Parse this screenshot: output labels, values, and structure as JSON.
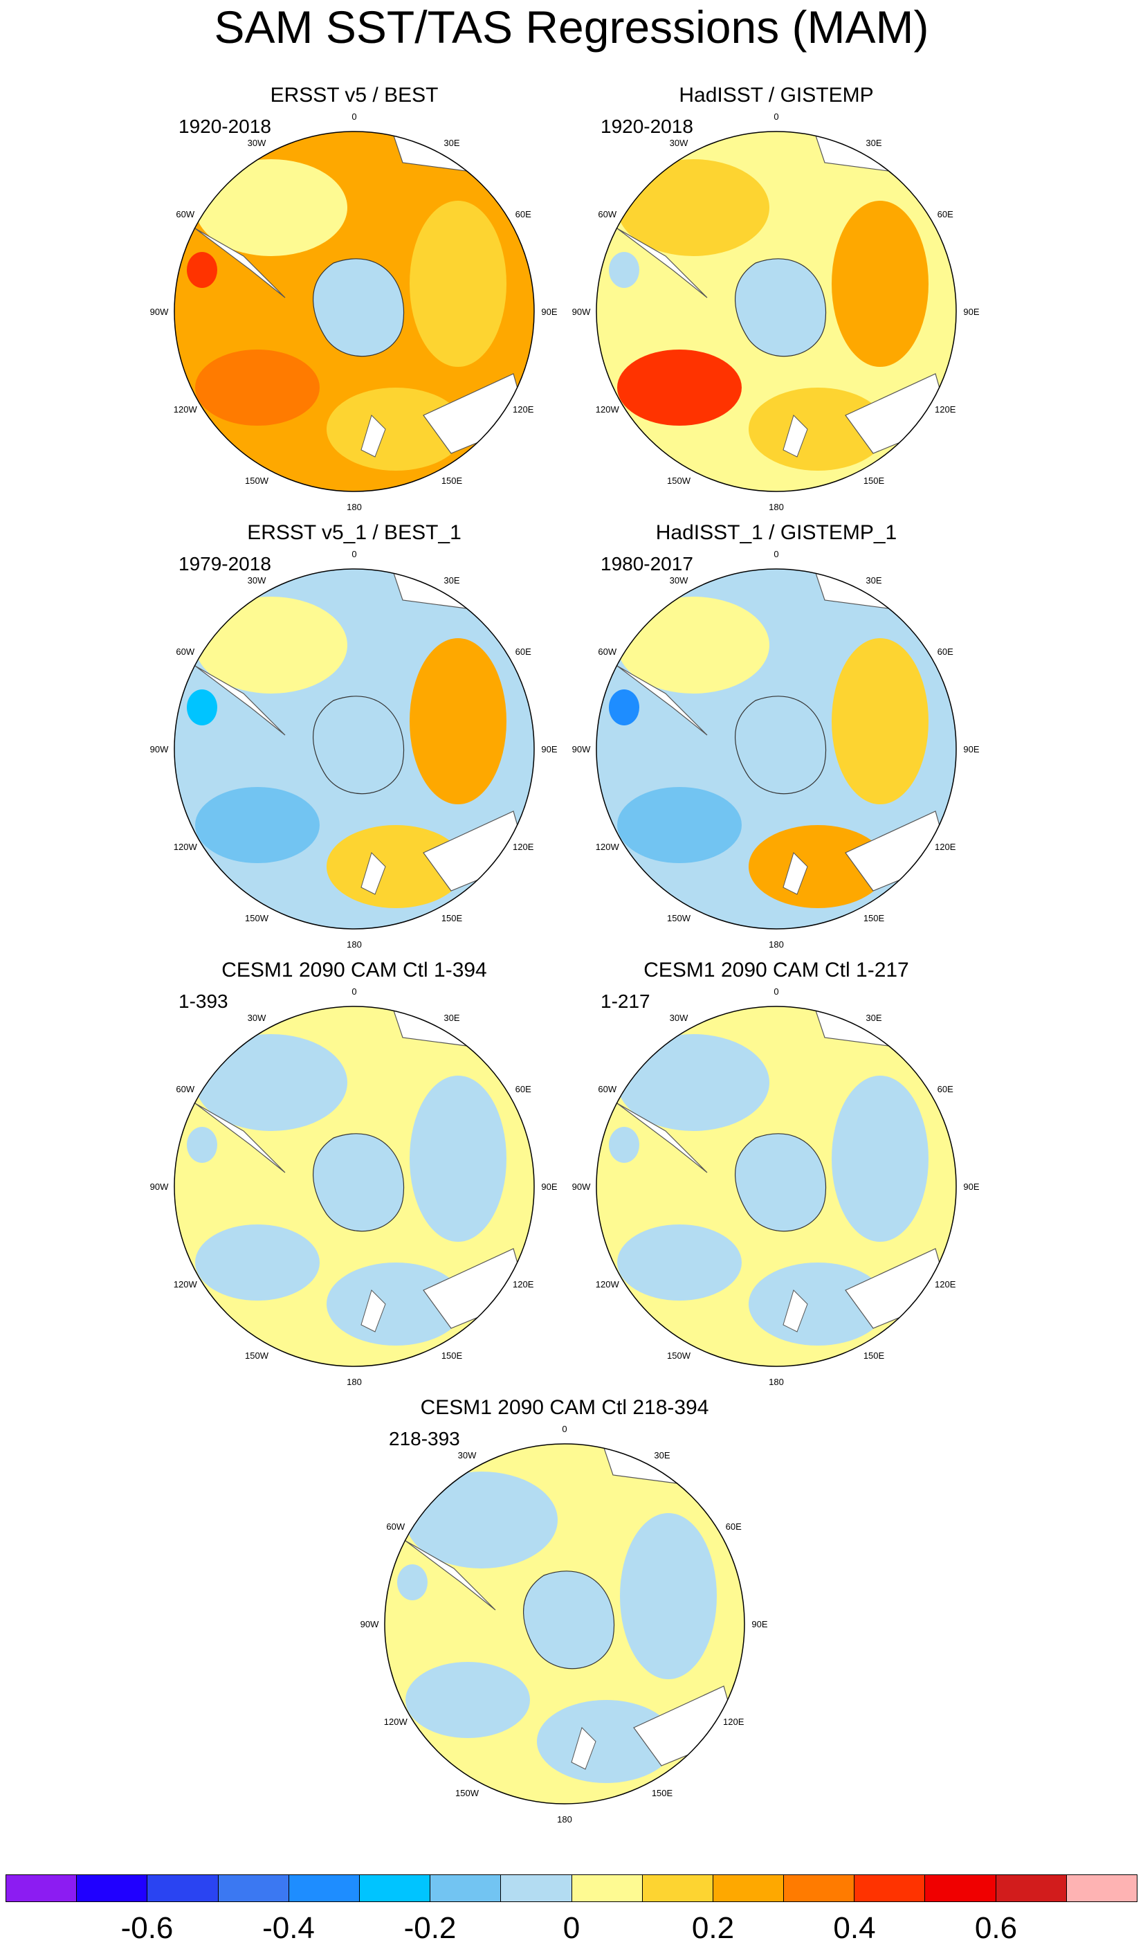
{
  "figure": {
    "title": "SAM SST/TAS Regressions (MAM)"
  },
  "compass_labels": [
    "0",
    "30E",
    "60E",
    "90E",
    "120E",
    "150E",
    "180",
    "150W",
    "120W",
    "90W",
    "60W",
    "30W"
  ],
  "panels": [
    {
      "title": "ERSST v5 / BEST",
      "period": "1920-2018",
      "ocean": "#fea800",
      "regions": [
        "#fefa92",
        "#fdd431",
        "#ff7b00",
        "#ff3300",
        "#fdd431"
      ]
    },
    {
      "title": "HadISST / GISTEMP",
      "period": "1920-2018",
      "ocean": "#fefa92",
      "regions": [
        "#fdd431",
        "#fea800",
        "#ff3300",
        "#b3dcf2",
        "#fdd431"
      ]
    },
    {
      "title": "ERSST v5_1 / BEST_1",
      "period": "1979-2018",
      "ocean": "#b3dcf2",
      "regions": [
        "#fefa92",
        "#fea800",
        "#72c4f2",
        "#00c4ff",
        "#fdd431"
      ]
    },
    {
      "title": "HadISST_1 / GISTEMP_1",
      "period": "1980-2017",
      "ocean": "#b3dcf2",
      "regions": [
        "#fefa92",
        "#fdd431",
        "#72c4f2",
        "#1e8dff",
        "#fea800"
      ]
    },
    {
      "title": "CESM1 2090 CAM Ctl 1-394",
      "period": "1-393",
      "ocean": "#fefa92",
      "regions": [
        "#b3dcf2",
        "#b3dcf2",
        "#b3dcf2",
        "#b3dcf2",
        "#b3dcf2"
      ]
    },
    {
      "title": "CESM1 2090 CAM Ctl 1-217",
      "period": "1-217",
      "ocean": "#fefa92",
      "regions": [
        "#b3dcf2",
        "#b3dcf2",
        "#b3dcf2",
        "#b3dcf2",
        "#b3dcf2"
      ]
    },
    {
      "title": "CESM1 2090 CAM Ctl 218-394",
      "period": "218-393",
      "ocean": "#fefa92",
      "regions": [
        "#b3dcf2",
        "#b3dcf2",
        "#b3dcf2",
        "#b3dcf2",
        "#b3dcf2"
      ]
    }
  ],
  "colorbar": {
    "colors": [
      "#8c1cf2",
      "#2000ff",
      "#2a44f2",
      "#3b78f2",
      "#1e8dff",
      "#00c4ff",
      "#72c4f2",
      "#b3dcf2",
      "#fefa92",
      "#fdd431",
      "#fea800",
      "#ff7b00",
      "#ff3300",
      "#f00000",
      "#d21c1c",
      "#feb3b3"
    ],
    "boundaries": [
      -0.7,
      -0.6,
      -0.5,
      -0.4,
      -0.3,
      -0.2,
      -0.1,
      0,
      0.1,
      0.2,
      0.3,
      0.4,
      0.5,
      0.6,
      0.7
    ],
    "tick_labels": [
      {
        "value": -0.6,
        "label": "-0.6"
      },
      {
        "value": -0.4,
        "label": "-0.4"
      },
      {
        "value": -0.2,
        "label": "-0.2"
      },
      {
        "value": 0,
        "label": "0"
      },
      {
        "value": 0.2,
        "label": "0.2"
      },
      {
        "value": 0.4,
        "label": "0.4"
      },
      {
        "value": 0.6,
        "label": "0.6"
      }
    ]
  }
}
